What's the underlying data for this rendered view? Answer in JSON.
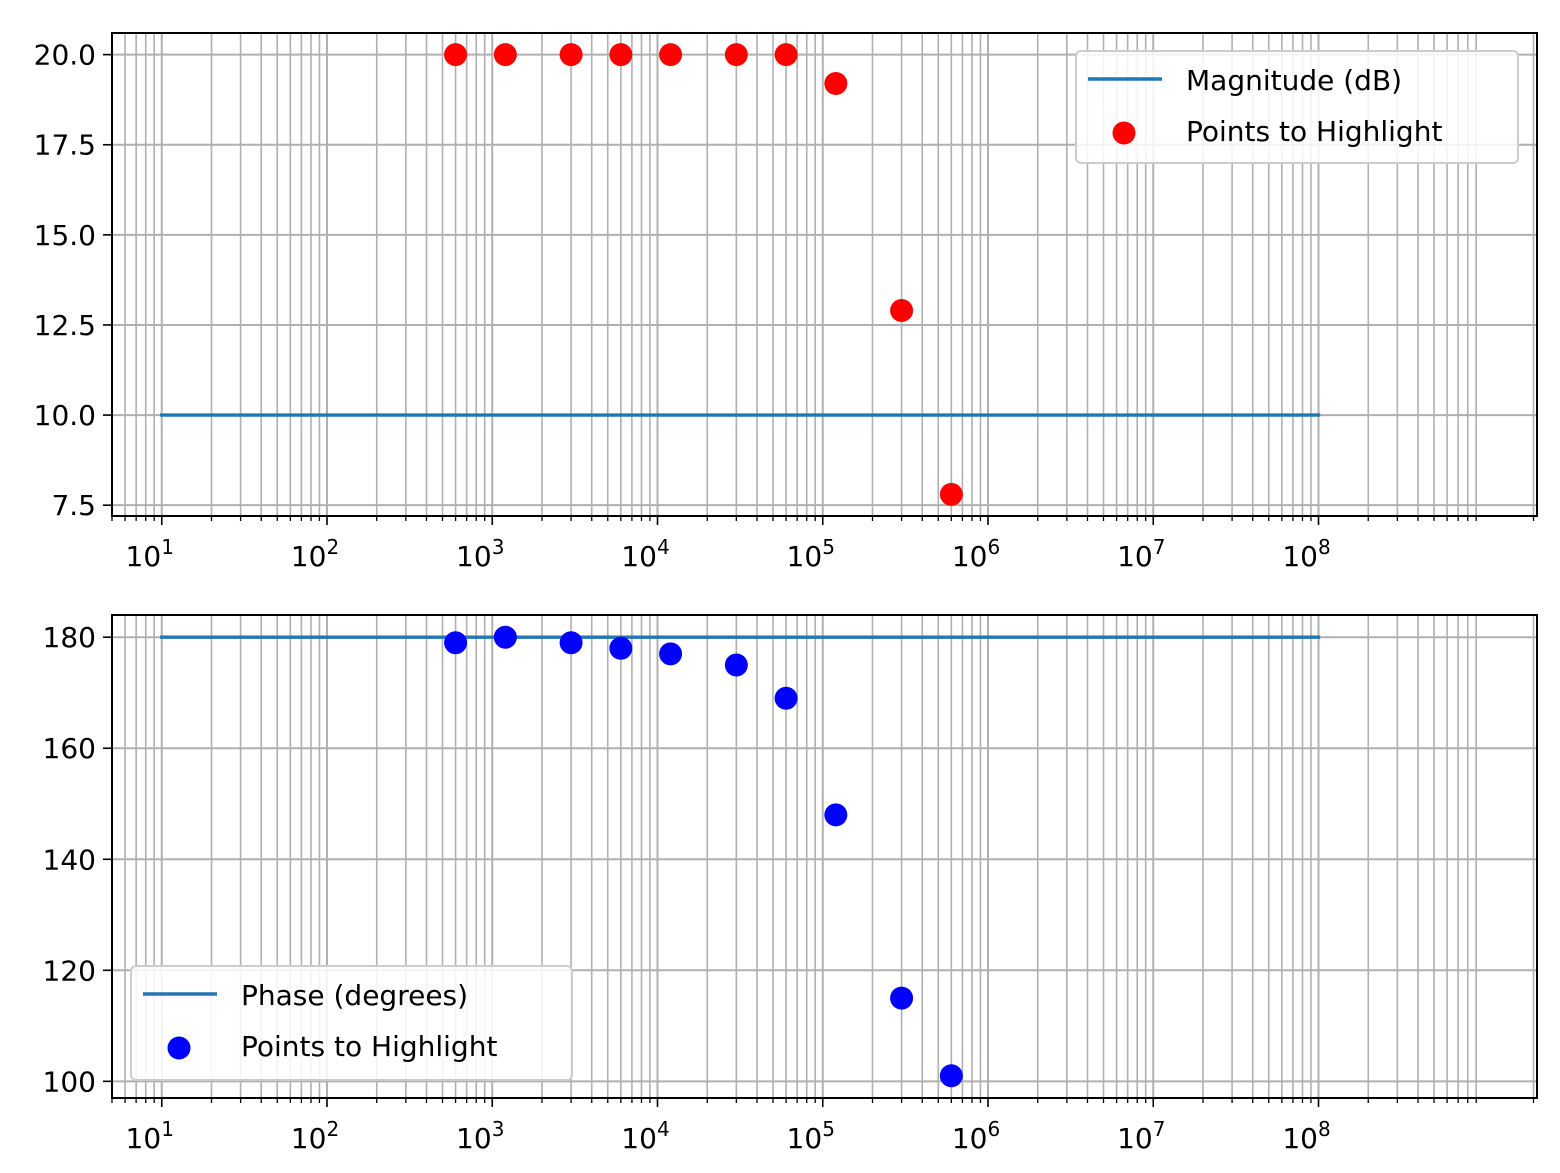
{
  "chart_data": [
    {
      "type": "line",
      "xscale": "log",
      "xlim": [
        5,
        2100000000
      ],
      "ylim": [
        7.2,
        20.6
      ],
      "yticks": [
        7.5,
        10.0,
        12.5,
        15.0,
        17.5,
        20.0
      ],
      "ytick_labels": [
        "7.5",
        "10.0",
        "12.5",
        "15.0",
        "17.5",
        "20.0"
      ],
      "xtick_exponents": [
        "1",
        "2",
        "3",
        "4",
        "5",
        "6",
        "7",
        "8"
      ],
      "grid": true,
      "legend_position": "top-right",
      "line": {
        "name": "Magnitude (dB)",
        "color": "#1f77b4",
        "x": [
          10,
          100000000
        ],
        "y": [
          10.0,
          10.0
        ]
      },
      "scatter": {
        "name": "Points to Highlight",
        "color": "#ff0000",
        "x": [
          600,
          1200,
          3000,
          6000,
          12000,
          30000,
          60000,
          120000,
          300000,
          600000
        ],
        "y": [
          20.0,
          20.0,
          20.0,
          20.0,
          20.0,
          20.0,
          20.0,
          19.2,
          12.9,
          7.8
        ]
      }
    },
    {
      "type": "line",
      "xscale": "log",
      "xlim": [
        5,
        2100000000
      ],
      "ylim": [
        97,
        184
      ],
      "yticks": [
        100,
        120,
        140,
        160,
        180
      ],
      "ytick_labels": [
        "100",
        "120",
        "140",
        "160",
        "180"
      ],
      "xtick_exponents": [
        "1",
        "2",
        "3",
        "4",
        "5",
        "6",
        "7",
        "8"
      ],
      "grid": true,
      "legend_position": "bottom-left",
      "line": {
        "name": "Phase (degrees)",
        "color": "#1f77b4",
        "x": [
          10,
          100000000
        ],
        "y": [
          180,
          180
        ]
      },
      "scatter": {
        "name": "Points to Highlight",
        "color": "#0000ff",
        "x": [
          600,
          1200,
          3000,
          6000,
          12000,
          30000,
          60000,
          120000,
          300000,
          600000
        ],
        "y": [
          179,
          180,
          179,
          178,
          177,
          175,
          169,
          148,
          115,
          101
        ]
      }
    }
  ]
}
